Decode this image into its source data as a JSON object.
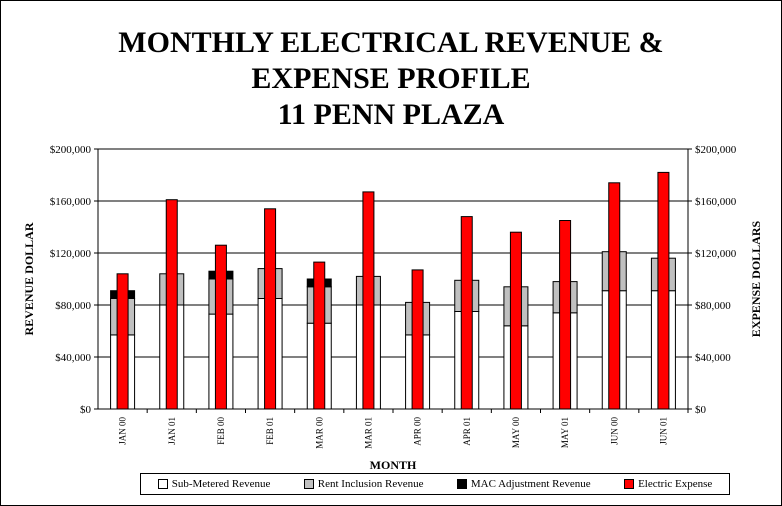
{
  "chart_data": {
    "type": "bar",
    "title": [
      "MONTHLY ELECTRICAL REVENUE &",
      "EXPENSE PROFILE",
      "11 PENN PLAZA"
    ],
    "xlabel": "MONTH",
    "ylabel": "REVENUE DOLLAR",
    "y2label": "EXPENSE DOLLARS",
    "ylim": [
      0,
      200000
    ],
    "yticks": [
      "$0",
      "$40,000",
      "$80,000",
      "$120,000",
      "$160,000",
      "$200,000"
    ],
    "ytick_values": [
      0,
      40000,
      80000,
      120000,
      160000,
      200000
    ],
    "grid": true,
    "legend_position": "bottom",
    "categories": [
      "JAN 00",
      "JAN 01",
      "FEB 00",
      "FEB 01",
      "MAR 00",
      "MAR 01",
      "APR 00",
      "APR 01",
      "MAY 00",
      "MAY 01",
      "JUN 00",
      "JUN 01"
    ],
    "series": [
      {
        "name": "Sub-Metered Revenue",
        "color": "#ffffff",
        "stack": "revenue",
        "values": [
          57000,
          80000,
          73000,
          85000,
          66000,
          80000,
          57000,
          75000,
          64000,
          74000,
          91000,
          91000
        ]
      },
      {
        "name": "Rent Inclusion Revenue",
        "color": "#c0c0c0",
        "stack": "revenue",
        "values": [
          28000,
          24000,
          27000,
          23000,
          28000,
          22000,
          25000,
          24000,
          30000,
          24000,
          30000,
          25000
        ]
      },
      {
        "name": "MAC Adjustment Revenue",
        "color": "#000000",
        "stack": "revenue",
        "values": [
          6000,
          0,
          6000,
          0,
          6000,
          0,
          0,
          0,
          0,
          0,
          0,
          0
        ]
      },
      {
        "name": "Electric Expense",
        "color": "#ff0000",
        "stack": "expense",
        "values": [
          104000,
          161000,
          126000,
          154000,
          113000,
          167000,
          107000,
          148000,
          136000,
          145000,
          174000,
          182000
        ]
      }
    ]
  }
}
